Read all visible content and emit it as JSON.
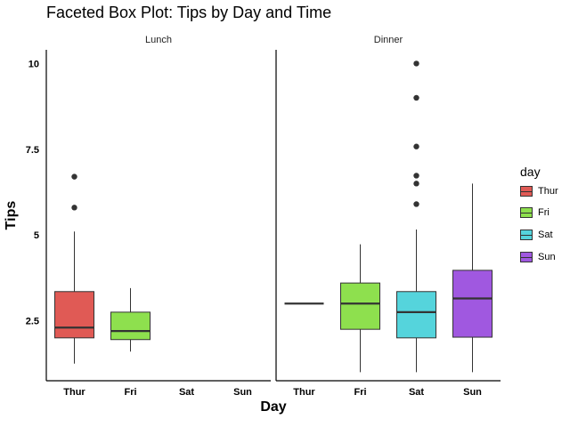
{
  "chart_data": {
    "type": "box",
    "title": "Faceted Box Plot: Tips by Day and Time",
    "xlabel": "Day",
    "ylabel": "Tips",
    "categories": [
      "Thur",
      "Fri",
      "Sat",
      "Sun"
    ],
    "ylim": [
      0.75,
      10.4
    ],
    "yticks": [
      2.5,
      5,
      7.5,
      10
    ],
    "ytick_labels": [
      "2.5",
      "5",
      "7.5",
      "10"
    ],
    "legend": {
      "title": "day",
      "position": "right",
      "entries": [
        {
          "label": "Thur",
          "color": "#E05A55"
        },
        {
          "label": "Fri",
          "color": "#8EE04E"
        },
        {
          "label": "Sat",
          "color": "#55D4DC"
        },
        {
          "label": "Sun",
          "color": "#A058E0"
        }
      ]
    },
    "facets": [
      {
        "name": "Lunch",
        "boxes": [
          {
            "category": "Thur",
            "whisker_low": 1.25,
            "q1": 2.0,
            "median": 2.3,
            "q3": 3.35,
            "whisker_high": 5.1,
            "outliers": [
              5.8,
              6.7
            ]
          },
          {
            "category": "Fri",
            "whisker_low": 1.6,
            "q1": 1.95,
            "median": 2.2,
            "q3": 2.75,
            "whisker_high": 3.45,
            "outliers": []
          }
        ]
      },
      {
        "name": "Dinner",
        "boxes": [
          {
            "category": "Thur",
            "whisker_low": 3.0,
            "q1": 3.0,
            "median": 3.0,
            "q3": 3.0,
            "whisker_high": 3.0,
            "outliers": []
          },
          {
            "category": "Fri",
            "whisker_low": 1.0,
            "q1": 2.25,
            "median": 3.0,
            "q3": 3.6,
            "whisker_high": 4.73,
            "outliers": []
          },
          {
            "category": "Sat",
            "whisker_low": 1.0,
            "q1": 2.0,
            "median": 2.75,
            "q3": 3.35,
            "whisker_high": 5.16,
            "outliers": [
              5.9,
              6.5,
              6.73,
              7.58,
              9.0,
              10.0
            ]
          },
          {
            "category": "Sun",
            "whisker_low": 1.0,
            "q1": 2.02,
            "median": 3.15,
            "q3": 3.97,
            "whisker_high": 6.5,
            "outliers": []
          }
        ]
      }
    ],
    "grid": false
  }
}
